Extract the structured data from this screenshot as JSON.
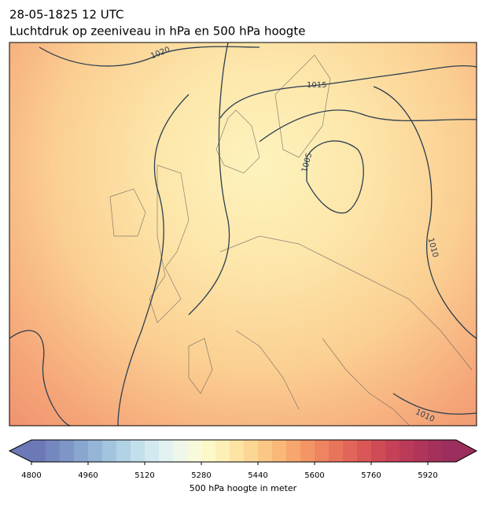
{
  "header": {
    "date": "28-05-1825 12 UTC",
    "title": "Luchtdruk op zeeniveau in hPa en 500 hPa hoogte"
  },
  "contour_labels": [
    "1020",
    "1015",
    "1005",
    "1010",
    "1010"
  ],
  "colorbar": {
    "label": "500 hPa hoogte in meter",
    "lim": [
      4800,
      6000
    ],
    "ticks": [
      4800,
      4960,
      5120,
      5280,
      5440,
      5600,
      5760,
      5920
    ],
    "colors": [
      "#6d79b6",
      "#7587bf",
      "#7e96c7",
      "#89a6cf",
      "#95b5d7",
      "#a3c4de",
      "#b2d2e5",
      "#c2dfec",
      "#d3e9f0",
      "#e2f2f1",
      "#eef7ea",
      "#f7fadb",
      "#fdf8c8",
      "#fdf0b6",
      "#fde4a4",
      "#fcd694",
      "#fbc785",
      "#f9b778",
      "#f7a66d",
      "#f49565",
      "#ef8460",
      "#e9745c",
      "#e26559",
      "#d95757",
      "#cf4b56",
      "#c54157",
      "#bb3a58",
      "#b0355a",
      "#a5315b",
      "#9b2e5c"
    ]
  }
}
